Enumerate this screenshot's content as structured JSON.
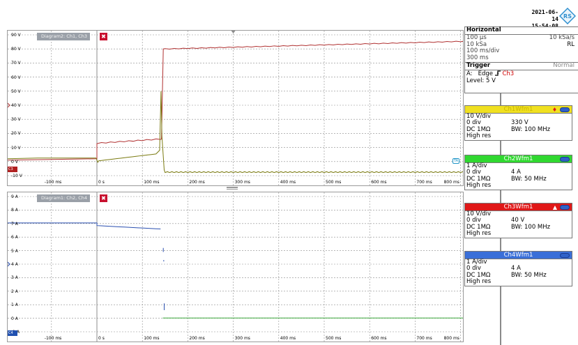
{
  "header": {
    "date": "2021-06-14",
    "time": "15:54:08",
    "logo_text": "RS"
  },
  "diagram2": {
    "title": "Diagram2: Ch1, Ch3",
    "close": "✖",
    "y_labels": [
      "90 V",
      "80 V",
      "70 V",
      "60 V",
      "50 V",
      "40 V",
      "30 V",
      "20 V",
      "10 V",
      "0 V",
      "-10 V"
    ],
    "x_labels": [
      "-100 ms",
      "0 s",
      "100 ms",
      "200 ms",
      "300 ms",
      "400 ms",
      "500 ms",
      "600 ms",
      "700 ms",
      "800 ms"
    ],
    "chip_left": "C3",
    "chip_right": "TA"
  },
  "diagram1": {
    "title": "Diagram1: Ch2, Ch4",
    "close": "✖",
    "y_labels": [
      "9 A",
      "8 A",
      "7 A",
      "6 A",
      "5 A",
      "4 A",
      "3 A",
      "2 A",
      "1 A",
      "0 A",
      "-1 A"
    ],
    "x_labels": [
      "-100 ms",
      "0 s",
      "100 ms",
      "200 ms",
      "300 ms",
      "400 ms",
      "500 ms",
      "600 ms",
      "700 ms",
      "800 ms"
    ],
    "chip_left": "C4"
  },
  "horizontal": {
    "header": "Horizontal",
    "scale": "100 μs",
    "sample_rate": "10 kSa/s",
    "record": "10 kSa",
    "rl": "RL",
    "time_div": "100 ms/div",
    "position": "300 ms"
  },
  "trigger": {
    "header": "Trigger",
    "mode": "Normal",
    "source_prefix": "A:",
    "type": "Edge",
    "source": "Ch3",
    "level": "Level: 5 V"
  },
  "channels": [
    {
      "name": "Ch1Wfm1",
      "color": "#f0e020",
      "title_color": "#c8b400",
      "scale": "10 V/div",
      "offset": "0 div",
      "value": "330 V",
      "coupling": "DC 1MΩ",
      "bw": "BW: 100 MHz",
      "mode": "High res"
    },
    {
      "name": "Ch2Wfm1",
      "color": "#30d830",
      "title_color": "#ffffff",
      "scale": "1 A/div",
      "offset": "0 div",
      "value": "4 A",
      "coupling": "DC 1MΩ",
      "bw": "BW: 50 MHz",
      "mode": "High res"
    },
    {
      "name": "Ch3Wfm1",
      "color": "#e01818",
      "title_color": "#ffffff",
      "scale": "10 V/div",
      "offset": "0 div",
      "value": "40 V",
      "coupling": "DC 1MΩ",
      "bw": "BW: 100 MHz",
      "mode": "High res"
    },
    {
      "name": "Ch4Wfm1",
      "color": "#3a6fd8",
      "title_color": "#ffffff",
      "scale": "1 A/div",
      "offset": "0 div",
      "value": "4 A",
      "coupling": "DC 1MΩ",
      "bw": "BW: 50 MHz",
      "mode": "High res"
    }
  ]
}
